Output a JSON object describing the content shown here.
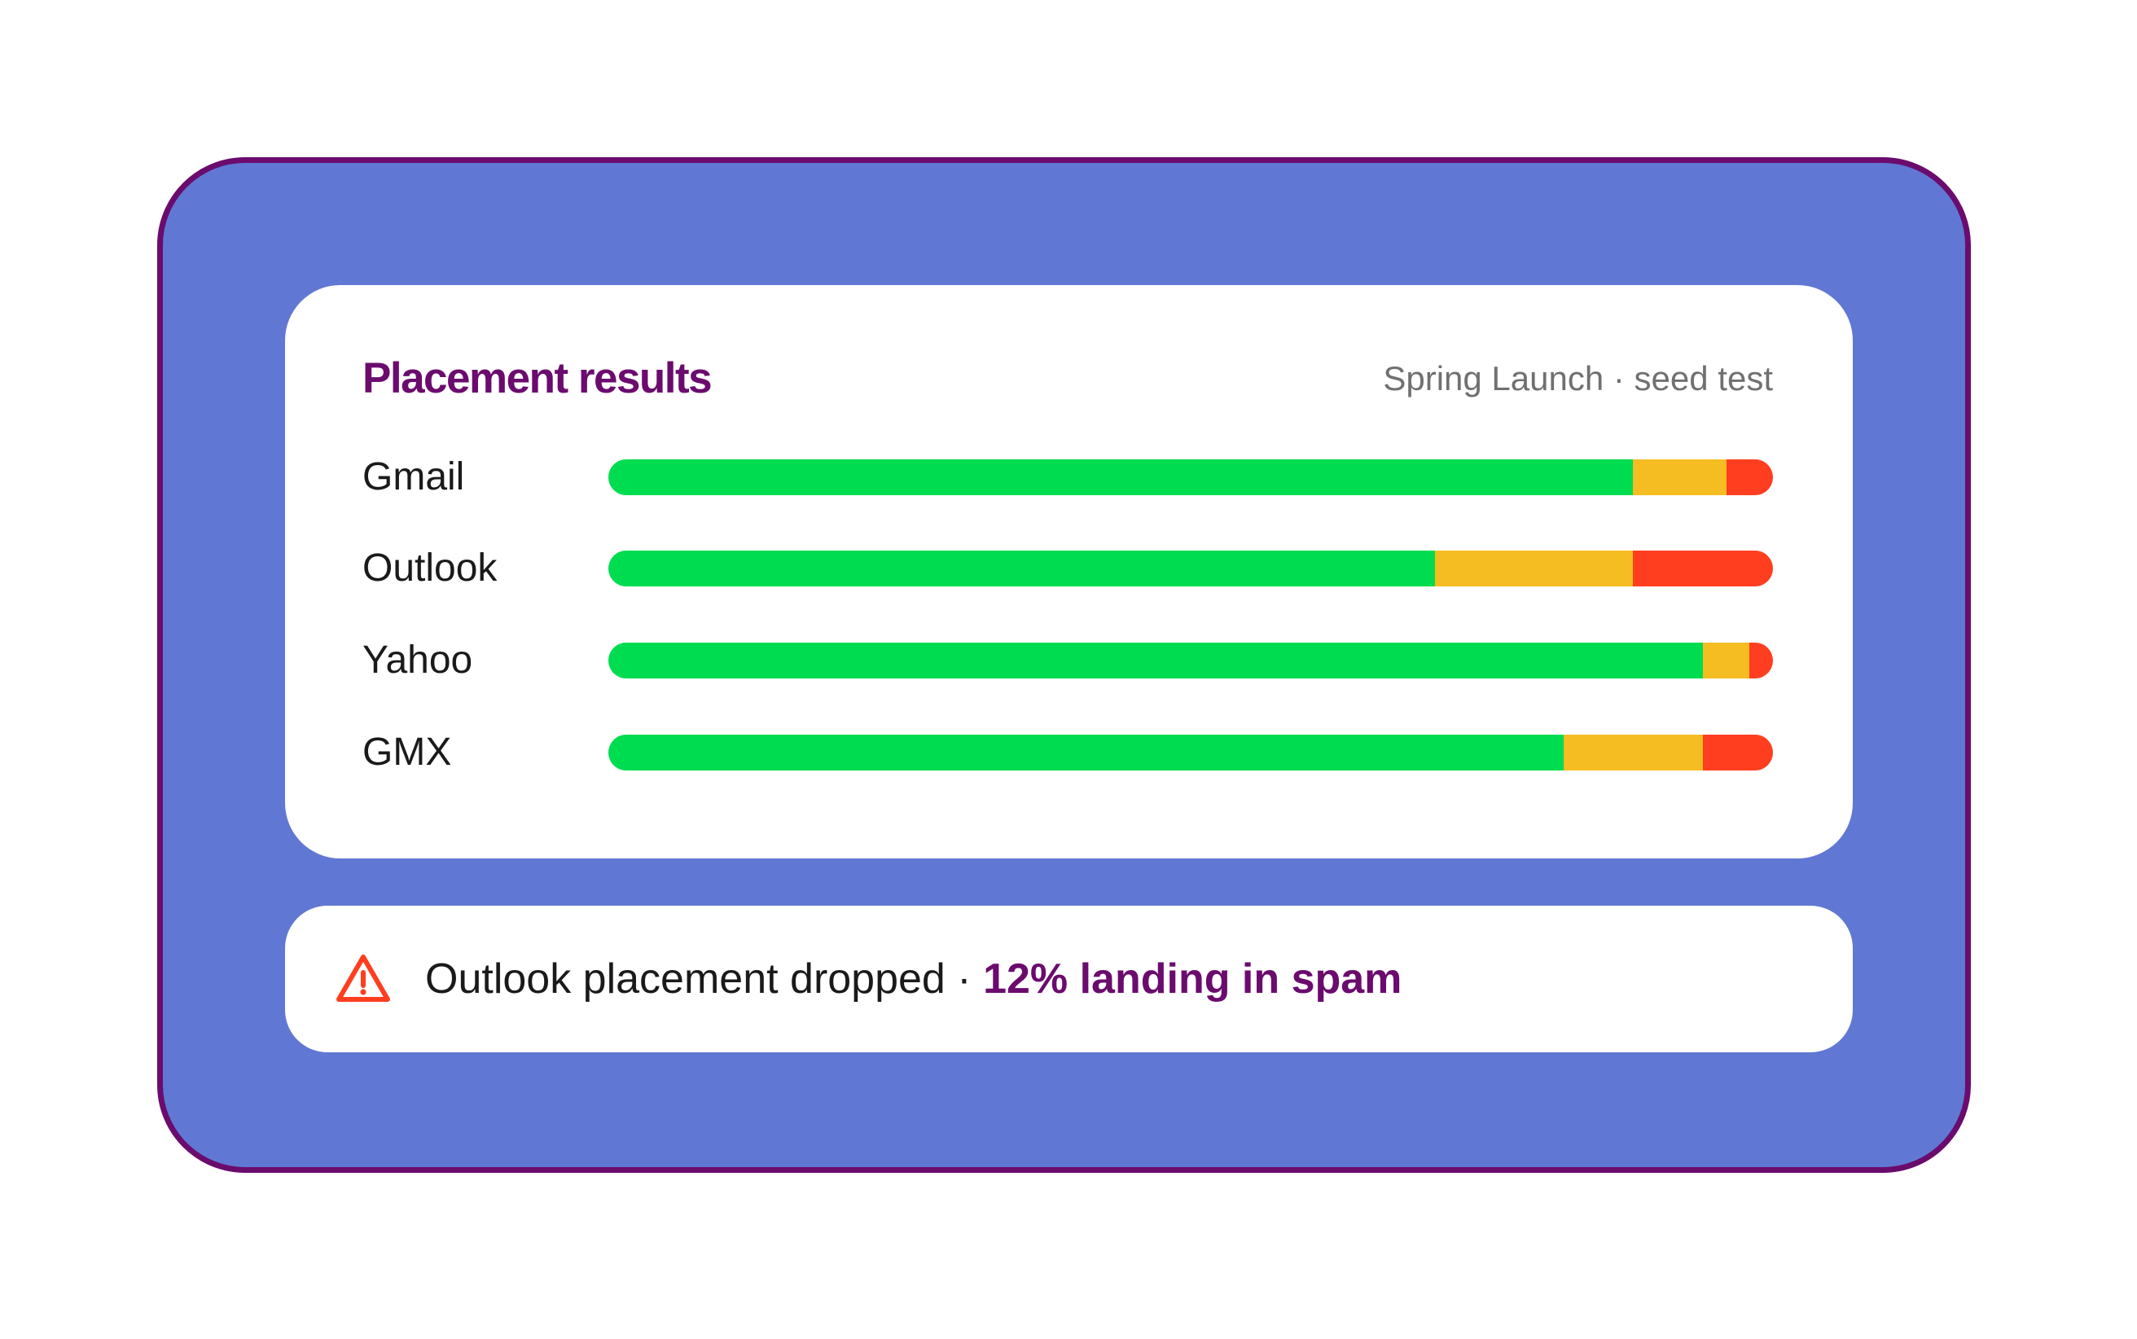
{
  "colors": {
    "frame_bg": "#6078d3",
    "frame_border": "#6b0b6e",
    "title": "#6b0b6e",
    "inbox": "#00dc50",
    "promotions": "#f5bd21",
    "spam": "#ff3e1f",
    "alert_highlight": "#6b0b6e",
    "alert_icon": "#ff3e1f"
  },
  "card": {
    "title": "Placement results",
    "subtitle": "Spring Launch · seed test"
  },
  "rows": [
    {
      "label": "Gmail",
      "segments": [
        0.88,
        0.08,
        0.04
      ]
    },
    {
      "label": "Outlook",
      "segments": [
        0.71,
        0.17,
        0.12
      ]
    },
    {
      "label": "Yahoo",
      "segments": [
        0.94,
        0.04,
        0.02
      ]
    },
    {
      "label": "GMX",
      "segments": [
        0.82,
        0.12,
        0.06
      ]
    }
  ],
  "alert": {
    "icon": "warning-triangle-icon",
    "text": "Outlook placement dropped",
    "separator": " · ",
    "highlight": "12% landing in spam"
  }
}
